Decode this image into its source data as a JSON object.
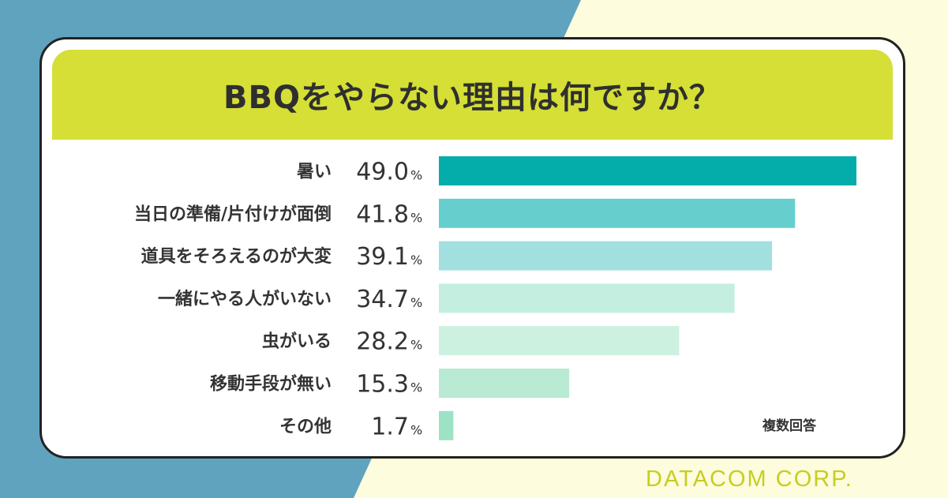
{
  "colors": {
    "background_light": "#fdfcdc",
    "background_blue": "#5fa3bf",
    "card": "#ffffff",
    "card_border": "#222222",
    "title_band": "#d5df36",
    "brand": "#c7cd23"
  },
  "title": "BBQをやらない理由は何ですか？",
  "note": "複数回答",
  "brand": "DATACOM CORP.",
  "chart_data": {
    "type": "bar",
    "orientation": "horizontal",
    "title": "BBQをやらない理由は何ですか？",
    "categories": [
      "暑い",
      "当日の準備/片付けが面倒",
      "道具をそろえるのが大変",
      "一緒にやる人がいない",
      "虫がいる",
      "移動手段が無い",
      "その他"
    ],
    "values": [
      49.0,
      41.8,
      39.1,
      34.7,
      28.2,
      15.3,
      1.7
    ],
    "value_labels": [
      "49.0",
      "41.8",
      "39.1",
      "34.7",
      "28.2",
      "15.3",
      "1.7"
    ],
    "unit": "%",
    "bar_colors": [
      "#05adaa",
      "#66cfcd",
      "#a2e0df",
      "#c4eedf",
      "#ccf1e0",
      "#b8ead4",
      "#9de2c4"
    ],
    "xlim": [
      0,
      49.0
    ],
    "note": "複数回答",
    "grid": false,
    "legend": "none"
  }
}
